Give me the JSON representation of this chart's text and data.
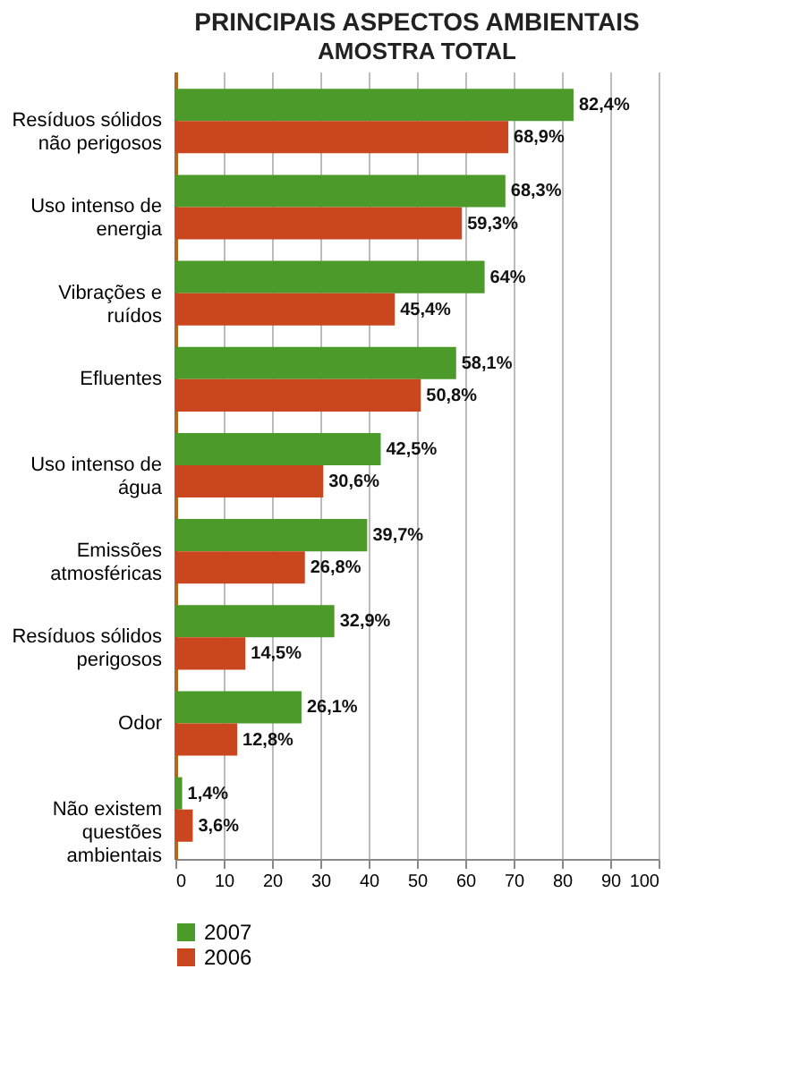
{
  "chart_data": {
    "type": "bar",
    "orientation": "horizontal",
    "title": "PRINCIPAIS ASPECTOS AMBIENTAIS",
    "subtitle": "AMOSTRA TOTAL",
    "categories": [
      "Resíduos sólidos não perigosos",
      "Uso intenso de energia",
      "Vibrações e ruídos",
      "Efluentes",
      "Uso intenso de água",
      "Emissões atmosféricas",
      "Resíduos sólidos perigosos",
      "Odor",
      "Não existem questões ambientais"
    ],
    "series": [
      {
        "name": "2007",
        "color": "#4c9a2a",
        "values": [
          82.4,
          68.3,
          64,
          58.1,
          42.5,
          39.7,
          32.9,
          26.1,
          1.4
        ],
        "value_labels": [
          "82,4%",
          "68,3%",
          "64%",
          "58,1%",
          "42,5%",
          "39,7%",
          "32,9%",
          "26,1%",
          "1,4%"
        ]
      },
      {
        "name": "2006",
        "color": "#c9461e",
        "values": [
          68.9,
          59.3,
          45.4,
          50.8,
          30.6,
          26.8,
          14.5,
          12.8,
          3.6
        ],
        "value_labels": [
          "68,9%",
          "59,3%",
          "45,4%",
          "50,8%",
          "30,6%",
          "26,8%",
          "14,5%",
          "12,8%",
          "3,6%"
        ]
      }
    ],
    "xlim": [
      0,
      100
    ],
    "xticks": [
      0,
      10,
      20,
      30,
      40,
      50,
      60,
      70,
      80,
      90,
      100
    ],
    "grid": "x",
    "legend": "bottom"
  }
}
